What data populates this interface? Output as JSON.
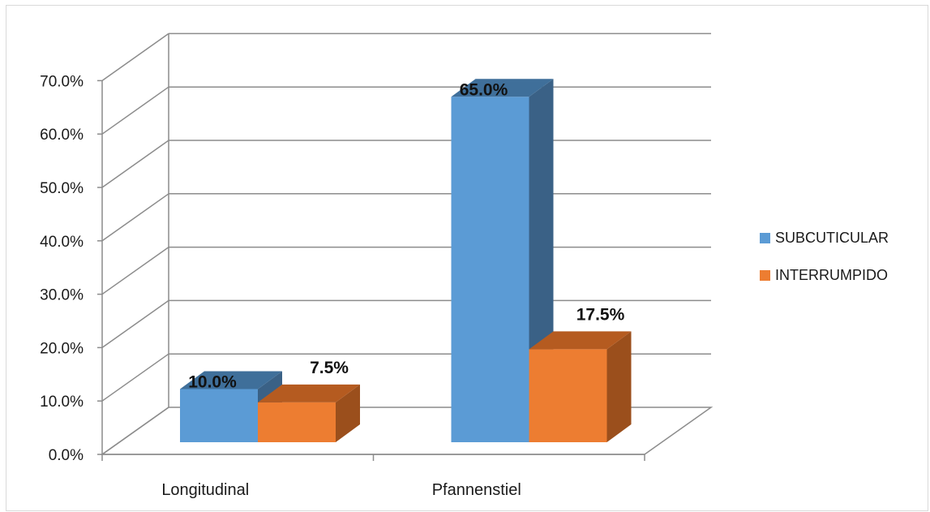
{
  "chart_data": {
    "type": "bar",
    "style": "3d-clustered-column",
    "categories": [
      "Longitudinal",
      "Pfannenstiel"
    ],
    "series": [
      {
        "name": "SUBCUTICULAR",
        "values": [
          10.0,
          65.0
        ],
        "labels": [
          "10.0%",
          "65.0%"
        ],
        "color": "#5b9bd5",
        "side_color": "#3a6186",
        "top_color": "#3f6f9a"
      },
      {
        "name": "INTERRUMPIDO",
        "values": [
          7.5,
          17.5
        ],
        "labels": [
          "7.5%",
          "17.5%"
        ],
        "color": "#ed7d31",
        "side_color": "#9b4f1c",
        "top_color": "#b55b20"
      }
    ],
    "y_ticks": [
      "0.0%",
      "10.0%",
      "20.0%",
      "30.0%",
      "40.0%",
      "50.0%",
      "60.0%",
      "70.0%"
    ],
    "ylim": [
      0,
      70
    ],
    "grid": true,
    "legend_position": "right",
    "title": "",
    "xlabel": "",
    "ylabel": ""
  }
}
